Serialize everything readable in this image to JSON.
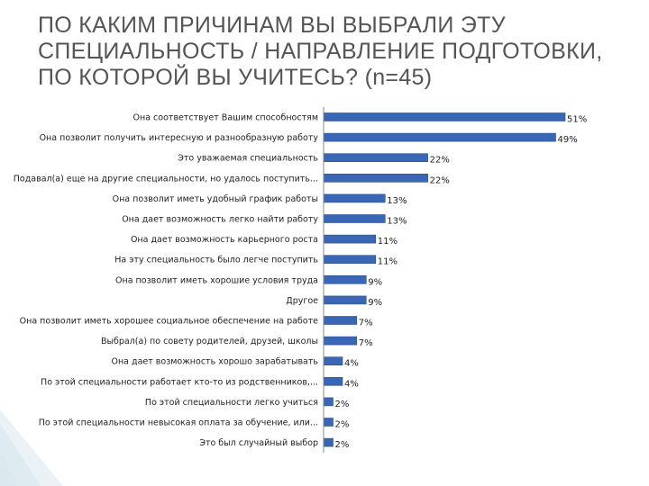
{
  "slide": {
    "title": "ПО КАКИМ ПРИЧИНАМ ВЫ ВЫБРАЛИ ЭТУ СПЕЦИАЛЬНОСТЬ / НАПРАВЛЕНИЕ ПОДГОТОВКИ, ПО КОТОРОЙ ВЫ УЧИТЕСЬ? (n=45)"
  },
  "colors": {
    "bar": "#3a67b5",
    "bar_edge": "#2c4f8e",
    "decor": "#d9e8ef"
  },
  "chart_data": {
    "type": "bar",
    "orientation": "horizontal",
    "title": "ПО КАКИМ ПРИЧИНАМ ВЫ ВЫБРАЛИ ЭТУ СПЕЦИАЛЬНОСТЬ / НАПРАВЛЕНИЕ ПОДГОТОВКИ, ПО КОТОРОЙ ВЫ УЧИТЕСЬ? (n=45)",
    "xlim": [
      0,
      51
    ],
    "grid": false,
    "legend": "none",
    "categories": [
      "Она соответствует Вашим способностям",
      "Она позволит получить интересную и разнообразную работу",
      "Это уважаемая специальность",
      "Подавал(а) еще на другие специальности, но удалось поступить...",
      "Она позволит иметь удобный график работы",
      "Она дает возможность легко найти работу",
      "Она дает возможность карьерного роста",
      "На эту специальность было легче поступить",
      "Она позволит иметь хорошие условия труда",
      "Другое",
      "Она позволит иметь хорошее социальное обеспечение на работе",
      "Выбрал(а) по совету родителей, друзей, школы",
      "Она дает возможность хорошо зарабатывать",
      "По этой специальности работает кто-то из родственников,...",
      "По этой специальности легко учиться",
      "По этой специальности невысокая оплата за обучение, или...",
      "Это был случайный выбор"
    ],
    "values": [
      51,
      49,
      22,
      22,
      13,
      13,
      11,
      11,
      9,
      9,
      7,
      7,
      4,
      4,
      2,
      2,
      2
    ],
    "value_labels": [
      "51%",
      "49%",
      "22%",
      "22%",
      "13%",
      "13%",
      "11%",
      "11%",
      "9%",
      "9%",
      "7%",
      "7%",
      "4%",
      "4%",
      "2%",
      "2%",
      "2%"
    ]
  }
}
